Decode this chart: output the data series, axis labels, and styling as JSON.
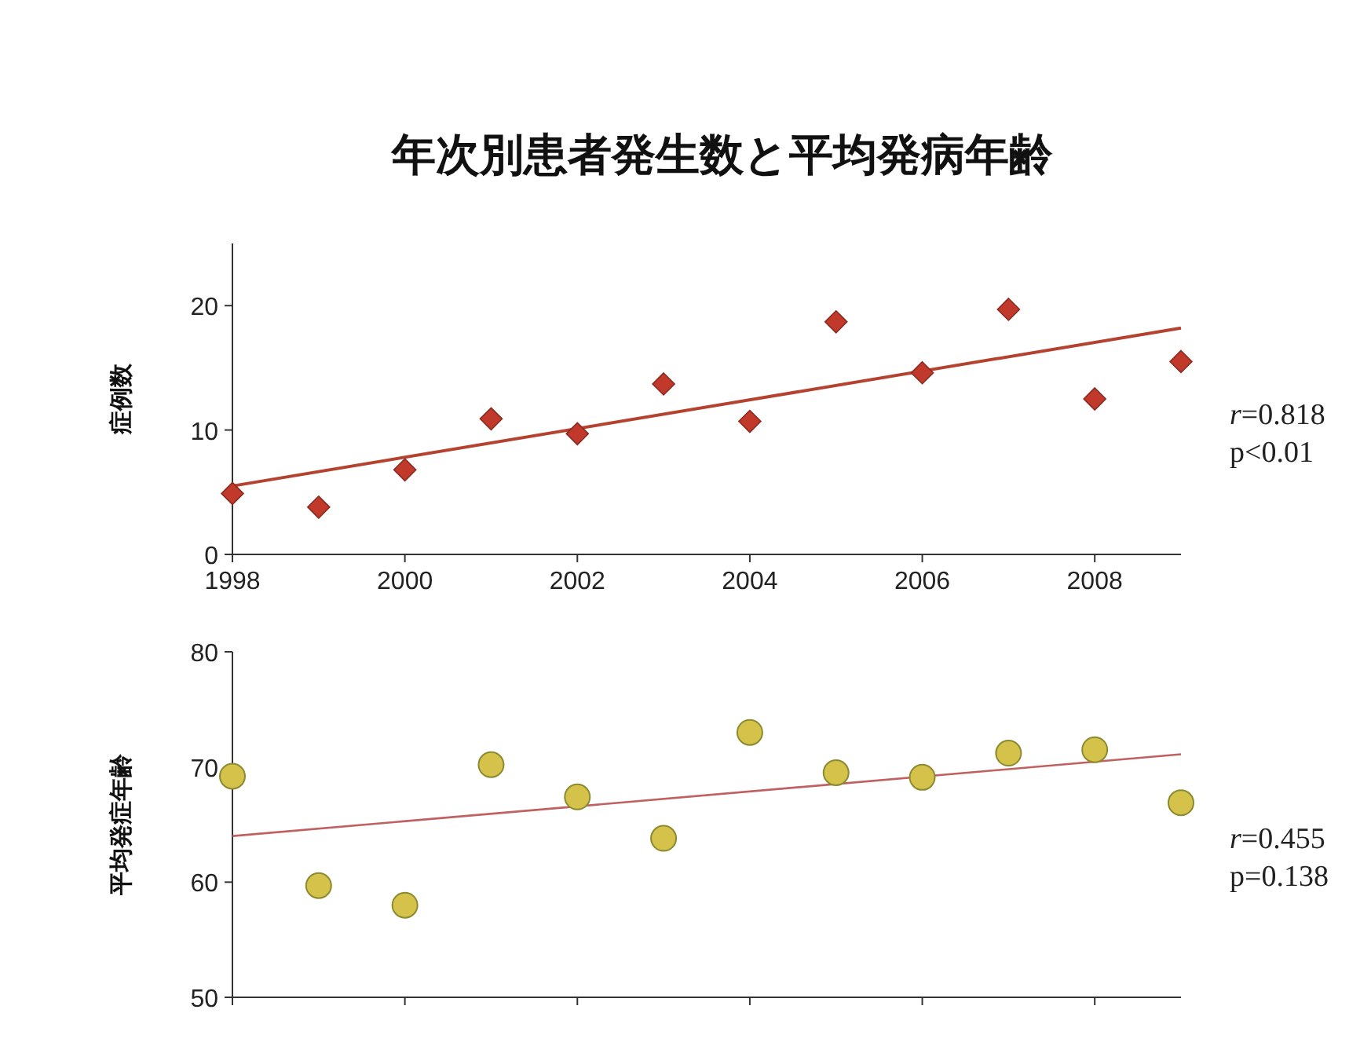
{
  "chart_data": [
    {
      "type": "scatter",
      "title": "年次別患者発生数と平均発病年齢",
      "ylabel": "症例数",
      "xlim": [
        1998,
        2009
      ],
      "xticks": [
        1998,
        2000,
        2002,
        2004,
        2006,
        2008
      ],
      "ylim": [
        0,
        25
      ],
      "yticks": [
        0,
        10,
        20
      ],
      "annotations": [
        "*r*=0.818",
        "p<0.01"
      ],
      "series": [
        {
          "color": "#c0392b",
          "marker": "diamond",
          "x": [
            1998,
            1999,
            2000,
            2001,
            2002,
            2003,
            2004,
            2005,
            2006,
            2007,
            2008,
            2009
          ],
          "values": [
            4.9,
            3.8,
            6.8,
            10.9,
            9.7,
            13.7,
            10.7,
            18.7,
            14.6,
            19.7,
            12.5,
            15.5
          ]
        },
        {
          "type": "line",
          "marker": "none",
          "color": "#b5422e",
          "x": [
            1998,
            2009
          ],
          "values": [
            5.5,
            18.2
          ]
        }
      ]
    },
    {
      "type": "scatter",
      "ylabel": "平均発症年齢",
      "xlim": [
        1998,
        2009
      ],
      "xticks": [
        1998,
        2000,
        2002,
        2004,
        2006,
        2008
      ],
      "ylim": [
        50,
        80
      ],
      "yticks": [
        50,
        60,
        70,
        80
      ],
      "tick_labels": "y",
      "annotations": [
        "*r*=0.455",
        "p=0.138"
      ],
      "series": [
        {
          "color": "#d4c24a",
          "marker": "circle",
          "x": [
            1998,
            1999,
            2000,
            2001,
            2002,
            2003,
            2004,
            2005,
            2006,
            2007,
            2008,
            2009
          ],
          "values": [
            69.2,
            59.7,
            58.0,
            70.2,
            67.4,
            63.8,
            73.0,
            69.5,
            69.1,
            71.2,
            71.5,
            66.9
          ]
        },
        {
          "type": "line",
          "marker": "none",
          "color": "#c06060",
          "x": [
            1998,
            2009
          ],
          "values": [
            64.0,
            71.1
          ]
        }
      ]
    }
  ]
}
